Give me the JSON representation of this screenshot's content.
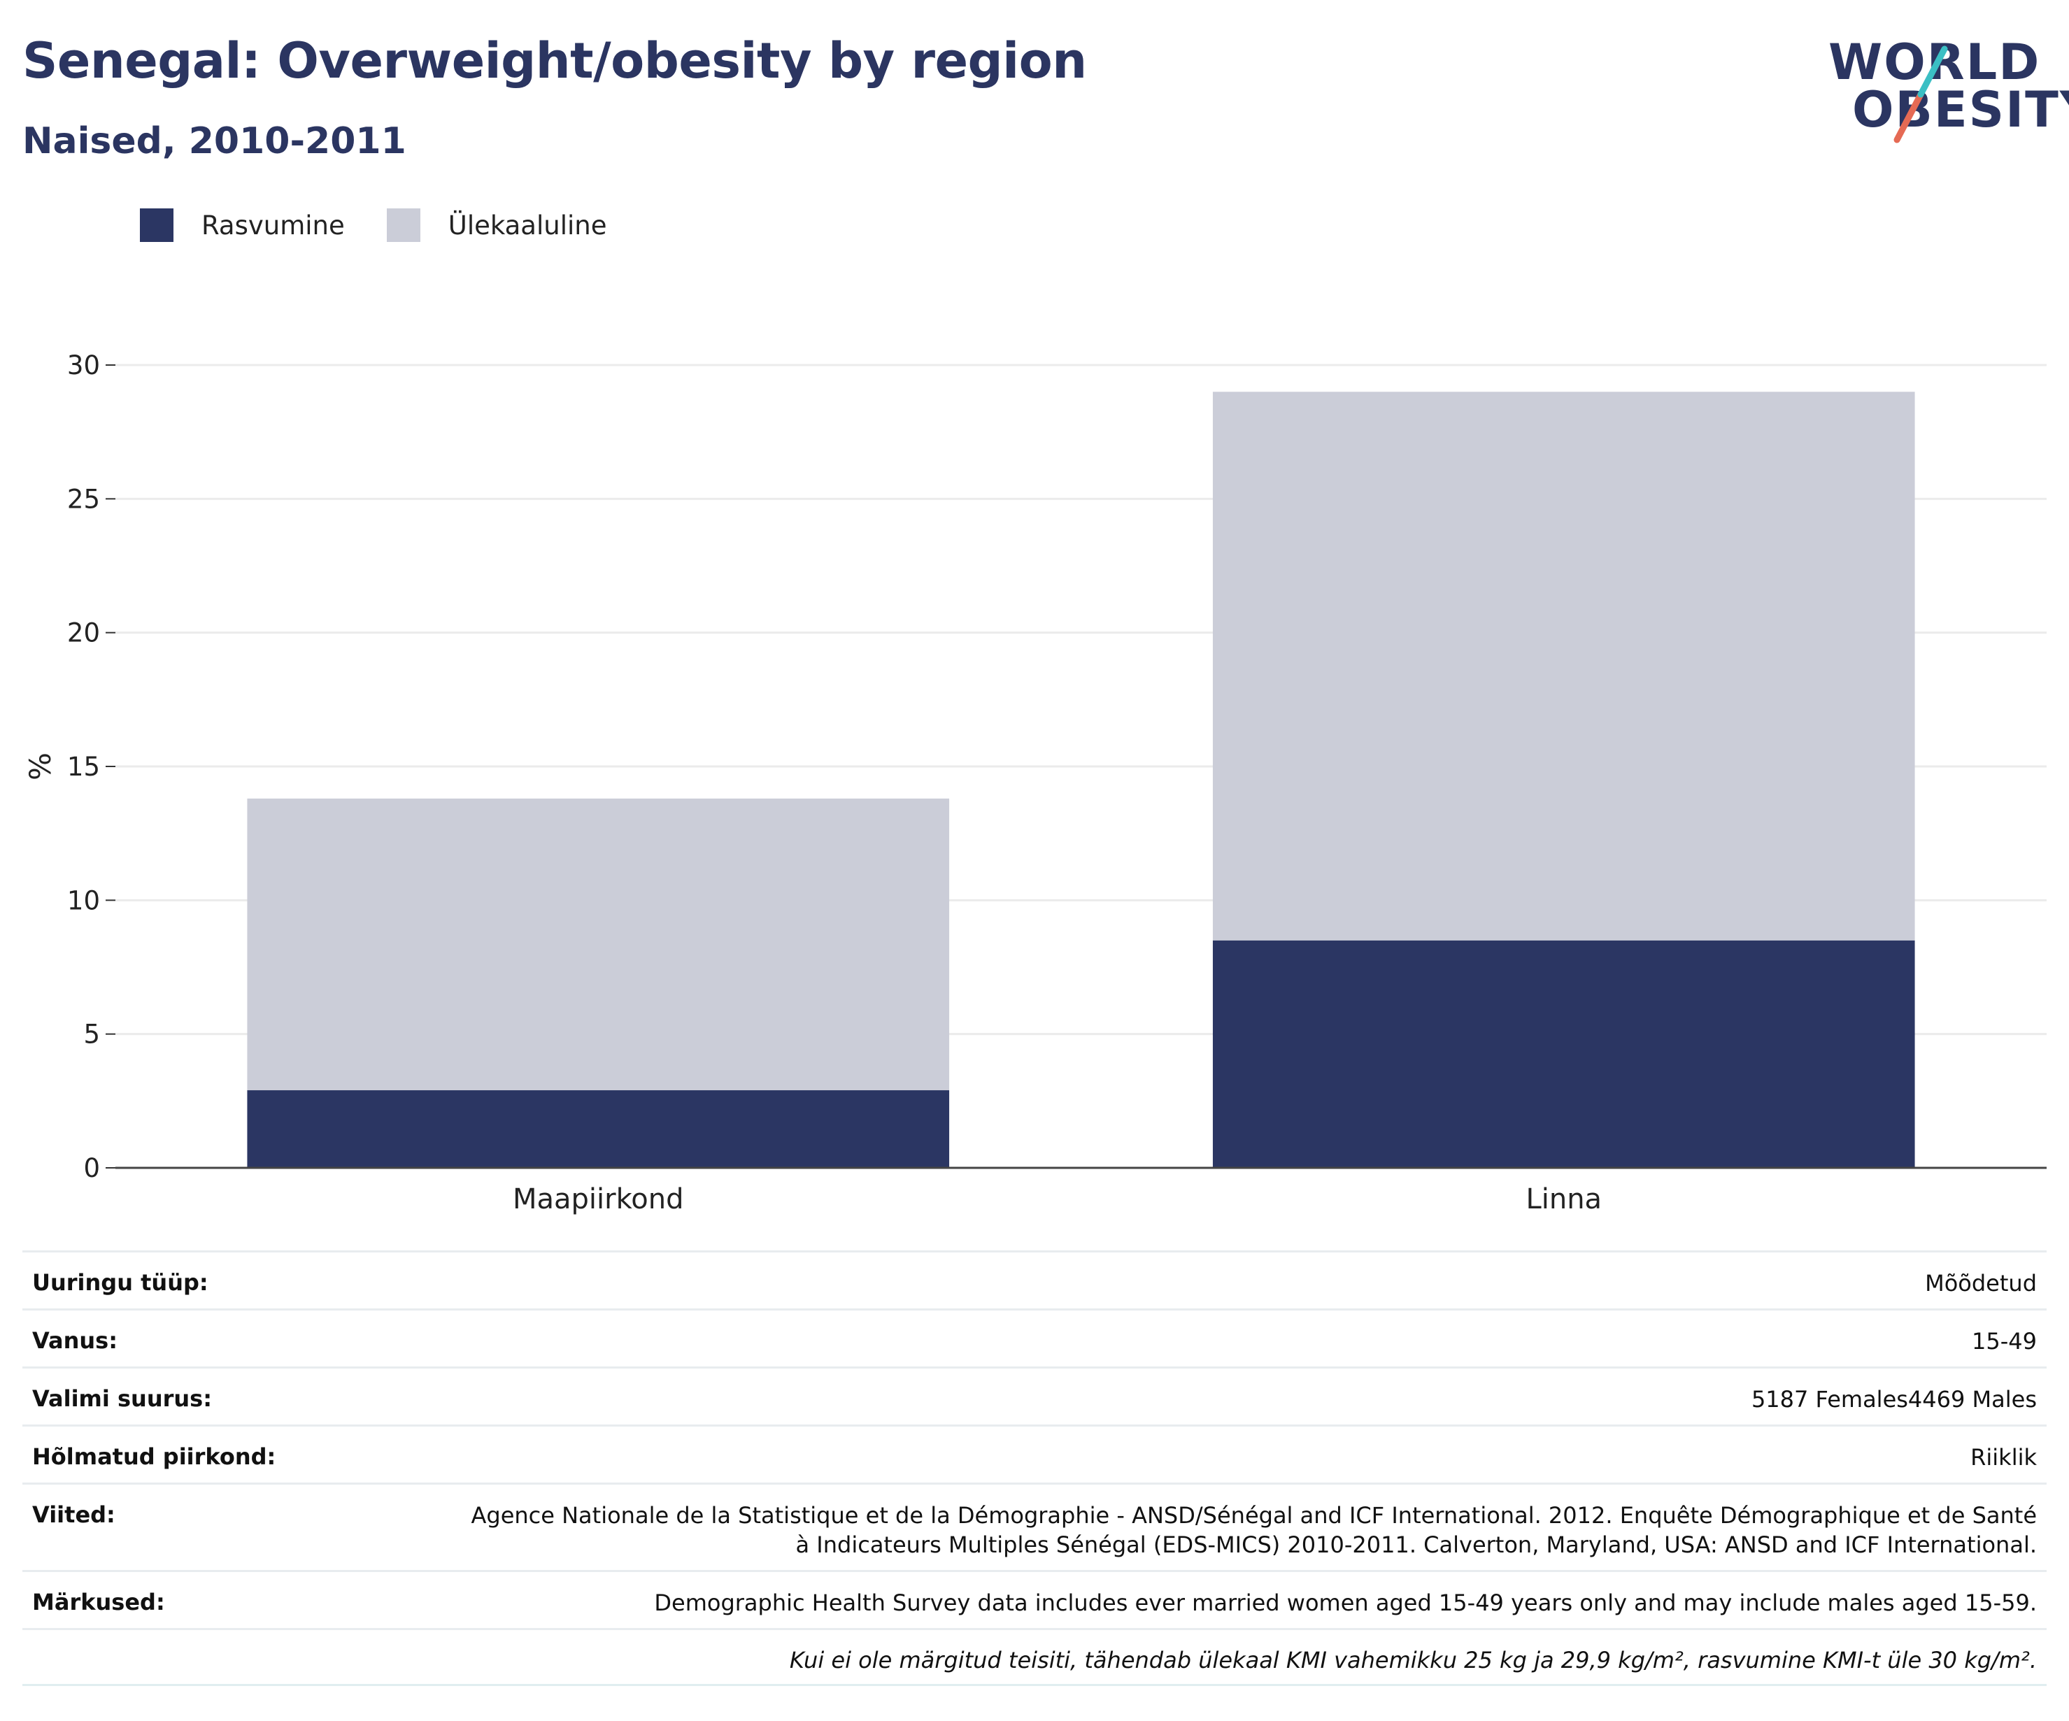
{
  "header": {
    "title": "Senegal: Overweight/obesity by region",
    "subtitle": "Naised, 2010-2011"
  },
  "logo": {
    "line1": "WORLD",
    "line2": "OBESITY"
  },
  "colors": {
    "obesity": "#2b3663",
    "overweight": "#cbcdd8",
    "text": "#2b3561"
  },
  "chart_data": {
    "type": "bar",
    "stacked": true,
    "categories": [
      "Maapiirkond",
      "Linna"
    ],
    "series": [
      {
        "name": "Rasvumine",
        "values": [
          2.9,
          8.5
        ]
      },
      {
        "name": "Ülekaaluline",
        "values": [
          10.9,
          20.5
        ]
      }
    ],
    "ylabel": "%",
    "ylim": [
      0,
      30
    ],
    "yticks": [
      0,
      5,
      10,
      15,
      20,
      25,
      30
    ],
    "grid": true,
    "legend": "top-left"
  },
  "meta": {
    "rows": [
      {
        "key": "Uuringu tüüp:",
        "value": "Mõõdetud"
      },
      {
        "key": "Vanus:",
        "value": "15-49"
      },
      {
        "key": "Valimi suurus:",
        "value": "5187 Females4469 Males"
      },
      {
        "key": "Hõlmatud piirkond:",
        "value": "Riiklik"
      },
      {
        "key": "Viited:",
        "value": "Agence Nationale de la Statistique et de la Démographie - ANSD/Sénégal and ICF International. 2012. Enquête Démographique et de Santé à Indicateurs Multiples Sénégal (EDS-MICS) 2010-2011. Calverton, Maryland, USA: ANSD and ICF International."
      },
      {
        "key": "Märkused:",
        "value": "Demographic Health Survey data includes ever married women aged 15-49 years only and may include males aged 15-59."
      }
    ],
    "note": "Kui ei ole märgitud teisiti, tähendab ülekaal KMI vahemikku 25 kg ja 29,9 kg/m², rasvumine KMI-t üle 30 kg/m²."
  }
}
